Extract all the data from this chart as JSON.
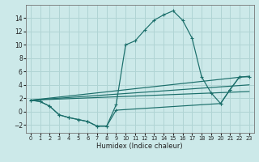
{
  "xlabel": "Humidex (Indice chaleur)",
  "xlim": [
    -0.5,
    23.5
  ],
  "ylim": [
    -3.2,
    16.0
  ],
  "yticks": [
    -2,
    0,
    2,
    4,
    6,
    8,
    10,
    12,
    14
  ],
  "xticks": [
    0,
    1,
    2,
    3,
    4,
    5,
    6,
    7,
    8,
    9,
    10,
    11,
    12,
    13,
    14,
    15,
    16,
    17,
    18,
    19,
    20,
    21,
    22,
    23
  ],
  "background_color": "#cce9e9",
  "grid_color": "#b0d4d4",
  "line_color": "#1a6e6a",
  "curve_main_x": [
    0,
    1,
    2,
    3,
    4,
    5,
    6,
    7,
    8,
    9,
    10,
    11,
    12,
    13,
    14,
    15,
    16,
    17,
    18,
    19,
    20,
    21,
    22
  ],
  "curve_main_y": [
    1.7,
    1.5,
    0.8,
    -0.5,
    -0.9,
    -1.2,
    -1.5,
    -2.2,
    -2.2,
    1.0,
    10.0,
    10.6,
    12.2,
    13.7,
    14.5,
    15.1,
    13.7,
    11.0,
    5.2,
    2.8,
    1.2,
    3.3,
    5.2
  ],
  "curve_lower_x": [
    0,
    1,
    2,
    3,
    4,
    5,
    6,
    7,
    8,
    9,
    20,
    21,
    22,
    23
  ],
  "curve_lower_y": [
    1.7,
    1.5,
    0.8,
    -0.5,
    -0.9,
    -1.2,
    -1.5,
    -2.2,
    -2.2,
    0.2,
    1.2,
    3.3,
    5.2,
    5.2
  ],
  "trend1_x": [
    0,
    23
  ],
  "trend1_y": [
    1.7,
    5.3
  ],
  "trend2_x": [
    0,
    23
  ],
  "trend2_y": [
    1.7,
    4.0
  ],
  "trend3_x": [
    0,
    23
  ],
  "trend3_y": [
    1.7,
    3.0
  ]
}
